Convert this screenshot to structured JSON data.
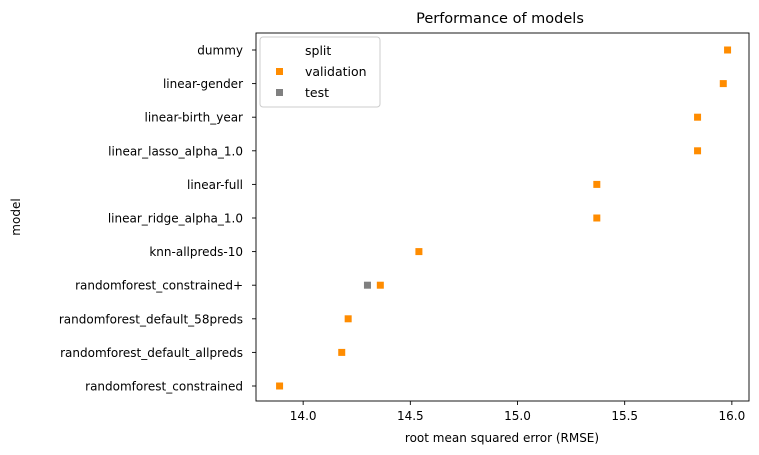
{
  "chart_data": {
    "type": "scatter",
    "title": "Performance of models",
    "xlabel": "root mean squared error (RMSE)",
    "ylabel": "model",
    "xlim": [
      13.78,
      16.08
    ],
    "xticks": [
      14.0,
      14.5,
      15.0,
      15.5,
      16.0
    ],
    "xtick_labels": [
      "14.0",
      "14.5",
      "15.0",
      "15.5",
      "16.0"
    ],
    "categories": [
      "dummy",
      "linear-gender",
      "linear-birth_year",
      "linear_lasso_alpha_1.0",
      "linear-full",
      "linear_ridge_alpha_1.0",
      "knn-allpreds-10",
      "randomforest_constrained+",
      "randomforest_default_58preds",
      "randomforest_default_allpreds",
      "randomforest_constrained"
    ],
    "legend": {
      "title": "split",
      "position": "top-left",
      "entries": [
        {
          "label": "validation",
          "color": "#ff8c00"
        },
        {
          "label": "test",
          "color": "#808080"
        }
      ]
    },
    "series": [
      {
        "name": "validation",
        "color": "#ff8c00",
        "marker": "square",
        "points": [
          {
            "y": "dummy",
            "x": 15.98
          },
          {
            "y": "linear-gender",
            "x": 15.96
          },
          {
            "y": "linear-birth_year",
            "x": 15.84
          },
          {
            "y": "linear_lasso_alpha_1.0",
            "x": 15.84
          },
          {
            "y": "linear-full",
            "x": 15.37
          },
          {
            "y": "linear_ridge_alpha_1.0",
            "x": 15.37
          },
          {
            "y": "knn-allpreds-10",
            "x": 14.54
          },
          {
            "y": "randomforest_constrained+",
            "x": 14.36
          },
          {
            "y": "randomforest_default_58preds",
            "x": 14.21
          },
          {
            "y": "randomforest_default_allpreds",
            "x": 14.18
          },
          {
            "y": "randomforest_constrained",
            "x": 13.89
          }
        ]
      },
      {
        "name": "test",
        "color": "#808080",
        "marker": "square",
        "points": [
          {
            "y": "randomforest_constrained+",
            "x": 14.3
          }
        ]
      }
    ]
  }
}
